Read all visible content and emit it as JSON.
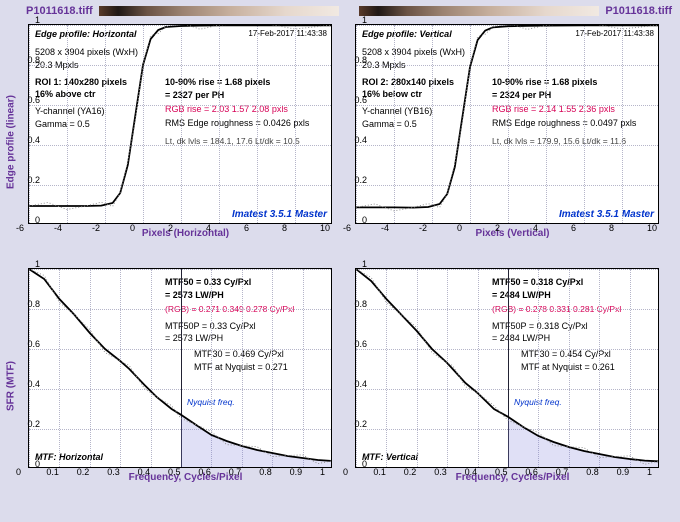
{
  "file": "P1011618.tiff",
  "timestamp": "17-Feb-2017 11:43:38",
  "ylab_top": "Edge profile (linear)",
  "ylab_bot": "SFR (MTF)",
  "xlab_topL": "Pixels (Horizontal)",
  "xlab_topR": "Pixels (Vertical)",
  "xlab_bot": "Frequency, Cycles/Pixel",
  "watermark": "Imatest 3.5.1 Master",
  "edge": {
    "sensor": "5208 x 3904 pixels (WxH)",
    "mpx": "20.3 Mpxls",
    "gamma": "Gamma = 0.5",
    "xlim": [
      -6,
      10
    ],
    "ylim": [
      0,
      1
    ],
    "xticks": [
      -6,
      -4,
      -2,
      0,
      2,
      4,
      6,
      8,
      10
    ],
    "yticks": [
      0,
      0.2,
      0.4,
      0.6,
      0.8,
      1
    ],
    "L": {
      "profile_title": "Edge profile: Horizontal",
      "roi": "ROI 1:  140x280 pixels",
      "pos": "16% above ctr",
      "chan": "Y-channel  (YA16)",
      "rise": "10-90% rise = 1.68 pixels",
      "perph": "= 2327 per PH",
      "rgb": "RGB rise = 2.03  1.57  2.08 pxls",
      "rough": "RMS Edge roughness = 0.0426 pxls",
      "lvls": "Lt, dk lvls = 184.1, 17.6    Lt/dk = 10.5",
      "curve": [
        [
          -6,
          0.095
        ],
        [
          -5,
          0.095
        ],
        [
          -4,
          0.095
        ],
        [
          -3,
          0.095
        ],
        [
          -2.2,
          0.097
        ],
        [
          -1.6,
          0.11
        ],
        [
          -1.2,
          0.16
        ],
        [
          -0.8,
          0.3
        ],
        [
          -0.4,
          0.55
        ],
        [
          0,
          0.8
        ],
        [
          0.4,
          0.93
        ],
        [
          0.8,
          0.975
        ],
        [
          1.2,
          0.99
        ],
        [
          2,
          0.995
        ],
        [
          3,
          0.997
        ],
        [
          4,
          0.998
        ],
        [
          6,
          0.998
        ],
        [
          8,
          0.998
        ],
        [
          10,
          0.998
        ]
      ]
    },
    "R": {
      "profile_title": "Edge profile: Vertical",
      "roi": "ROI 2:  280x140 pixels",
      "pos": "16% below ctr",
      "chan": "Y-channel  (YB16)",
      "rise": "10-90% rise = 1.68 pixels",
      "perph": "= 2324 per PH",
      "rgb": "RGB rise = 2.14  1.55  2.36 pxls",
      "rough": "RMS Edge roughness = 0.0497 pxls",
      "lvls": "Lt, dk lvls = 179.9, 15.6    Lt/dk = 11.6",
      "curve": [
        [
          -6,
          0.088
        ],
        [
          -5,
          0.088
        ],
        [
          -4,
          0.088
        ],
        [
          -3,
          0.087
        ],
        [
          -2.2,
          0.09
        ],
        [
          -1.6,
          0.105
        ],
        [
          -1.2,
          0.155
        ],
        [
          -0.8,
          0.29
        ],
        [
          -0.4,
          0.54
        ],
        [
          0,
          0.79
        ],
        [
          0.4,
          0.925
        ],
        [
          0.8,
          0.972
        ],
        [
          1.2,
          0.988
        ],
        [
          2,
          0.994
        ],
        [
          3,
          0.996
        ],
        [
          4,
          0.997
        ],
        [
          6,
          0.998
        ],
        [
          8,
          0.998
        ],
        [
          10,
          0.998
        ]
      ]
    }
  },
  "mtf": {
    "xlim": [
      0,
      1
    ],
    "ylim": [
      0,
      1
    ],
    "xticks": [
      0,
      0.1,
      0.2,
      0.3,
      0.4,
      0.5,
      0.6,
      0.7,
      0.8,
      0.9,
      1
    ],
    "yticks": [
      0,
      0.2,
      0.4,
      0.6,
      0.8,
      1
    ],
    "nyquist": 0.5,
    "nyquist_label": "Nyquist freq.",
    "L": {
      "profile": "MTF: Horizontal",
      "mtf50": "MTF50 = 0.33 Cy/Pxl",
      "lwph": "= 2573 LW/PH",
      "rgb": "(RGB) = 0.271  0.349  0.278 Cy/Pxl",
      "mtf50p": "MTF50P = 0.33 Cy/Pxl",
      "lwph2": "= 2573 LW/PH",
      "mtf30": "MTF30 = 0.469 Cy/Pxl",
      "mtfny": "MTF at Nyquist = 0.271",
      "curve": [
        [
          0,
          1
        ],
        [
          0.05,
          0.95
        ],
        [
          0.1,
          0.85
        ],
        [
          0.15,
          0.77
        ],
        [
          0.2,
          0.68
        ],
        [
          0.25,
          0.6
        ],
        [
          0.3,
          0.54
        ],
        [
          0.33,
          0.5
        ],
        [
          0.38,
          0.42
        ],
        [
          0.42,
          0.36
        ],
        [
          0.469,
          0.3
        ],
        [
          0.5,
          0.271
        ],
        [
          0.55,
          0.22
        ],
        [
          0.6,
          0.17
        ],
        [
          0.65,
          0.14
        ],
        [
          0.7,
          0.115
        ],
        [
          0.75,
          0.095
        ],
        [
          0.8,
          0.08
        ],
        [
          0.85,
          0.065
        ],
        [
          0.9,
          0.055
        ],
        [
          0.95,
          0.045
        ],
        [
          1,
          0.04
        ]
      ]
    },
    "R": {
      "profile": "MTF: Vertical",
      "mtf50": "MTF50 = 0.318 Cy/Pxl",
      "lwph": "= 2484 LW/PH",
      "rgb": "(RGB) = 0.278  0.331  0.281 Cy/Pxl",
      "mtf50p": "MTF50P = 0.318 Cy/Pxl",
      "lwph2": "= 2484 LW/PH",
      "mtf30": "MTF30 = 0.454 Cy/Pxl",
      "mtfny": "MTF at Nyquist = 0.261",
      "curve": [
        [
          0,
          1
        ],
        [
          0.05,
          0.94
        ],
        [
          0.1,
          0.85
        ],
        [
          0.15,
          0.77
        ],
        [
          0.2,
          0.69
        ],
        [
          0.25,
          0.6
        ],
        [
          0.3,
          0.53
        ],
        [
          0.318,
          0.5
        ],
        [
          0.36,
          0.43
        ],
        [
          0.4,
          0.38
        ],
        [
          0.454,
          0.3
        ],
        [
          0.5,
          0.261
        ],
        [
          0.55,
          0.21
        ],
        [
          0.6,
          0.165
        ],
        [
          0.65,
          0.135
        ],
        [
          0.7,
          0.11
        ],
        [
          0.75,
          0.09
        ],
        [
          0.8,
          0.075
        ],
        [
          0.85,
          0.06
        ],
        [
          0.9,
          0.05
        ],
        [
          0.95,
          0.042
        ],
        [
          1,
          0.038
        ]
      ]
    }
  }
}
